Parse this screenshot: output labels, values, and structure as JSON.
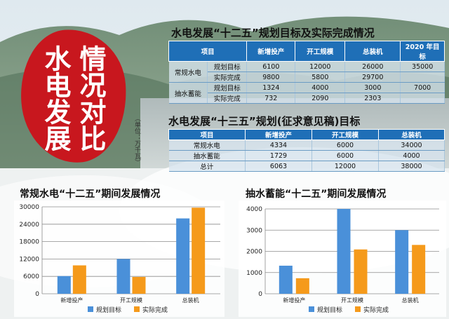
{
  "seal": {
    "line1": "情况对比",
    "line2": "水电发展"
  },
  "unit_note": "（单位：万千瓦）",
  "table1": {
    "title": "水电发展“十二五”规划目标及实际完成情况",
    "headers": [
      "项目",
      "新增投产",
      "开工规模",
      "总装机",
      "2020 年目标"
    ],
    "rows": [
      {
        "group": "常规水电",
        "item": "规划目标",
        "values": [
          "6100",
          "12000",
          "26000",
          "35000"
        ]
      },
      {
        "group": "",
        "item": "实际完成",
        "values": [
          "9800",
          "5800",
          "29700",
          ""
        ]
      },
      {
        "group": "抽水蓄能",
        "item": "规划目标",
        "values": [
          "1324",
          "4000",
          "3000",
          "7000"
        ]
      },
      {
        "group": "",
        "item": "实际完成",
        "values": [
          "732",
          "2090",
          "2303",
          ""
        ]
      }
    ]
  },
  "table2": {
    "title": "水电发展“十三五”规划(征求意见稿)目标",
    "headers": [
      "项目",
      "新增投产",
      "开工规模",
      "总装机"
    ],
    "rows": [
      {
        "item": "常规水电",
        "values": [
          "4334",
          "6000",
          "34000"
        ]
      },
      {
        "item": "抽水蓄能",
        "values": [
          "1729",
          "6000",
          "4000"
        ]
      },
      {
        "item": "总计",
        "values": [
          "6063",
          "12000",
          "38000"
        ]
      }
    ]
  },
  "chart_data": [
    {
      "type": "bar",
      "title": "常规水电“十二五”期间发展情况",
      "categories": [
        "新增投产",
        "开工规模",
        "总装机"
      ],
      "series": [
        {
          "name": "规划目标",
          "values": [
            6100,
            12000,
            26000
          ],
          "color": "#4a90d9"
        },
        {
          "name": "实际完成",
          "values": [
            9800,
            5800,
            29700
          ],
          "color": "#f59a1b"
        }
      ],
      "ylim": [
        0,
        30000
      ],
      "yticks": [
        0,
        6000,
        12000,
        18000,
        24000,
        30000
      ],
      "grid": true,
      "legend": "bottom"
    },
    {
      "type": "bar",
      "title": "抽水蓄能“十二五”期间发展情况",
      "categories": [
        "新增投产",
        "开工规模",
        "总装机"
      ],
      "series": [
        {
          "name": "规划目标",
          "values": [
            1324,
            4000,
            3000
          ],
          "color": "#4a90d9"
        },
        {
          "name": "实际完成",
          "values": [
            732,
            2090,
            2303
          ],
          "color": "#f59a1b"
        }
      ],
      "ylim": [
        0,
        4000
      ],
      "yticks": [
        0,
        1000,
        2000,
        3000,
        4000
      ],
      "grid": true,
      "legend": "bottom"
    }
  ]
}
